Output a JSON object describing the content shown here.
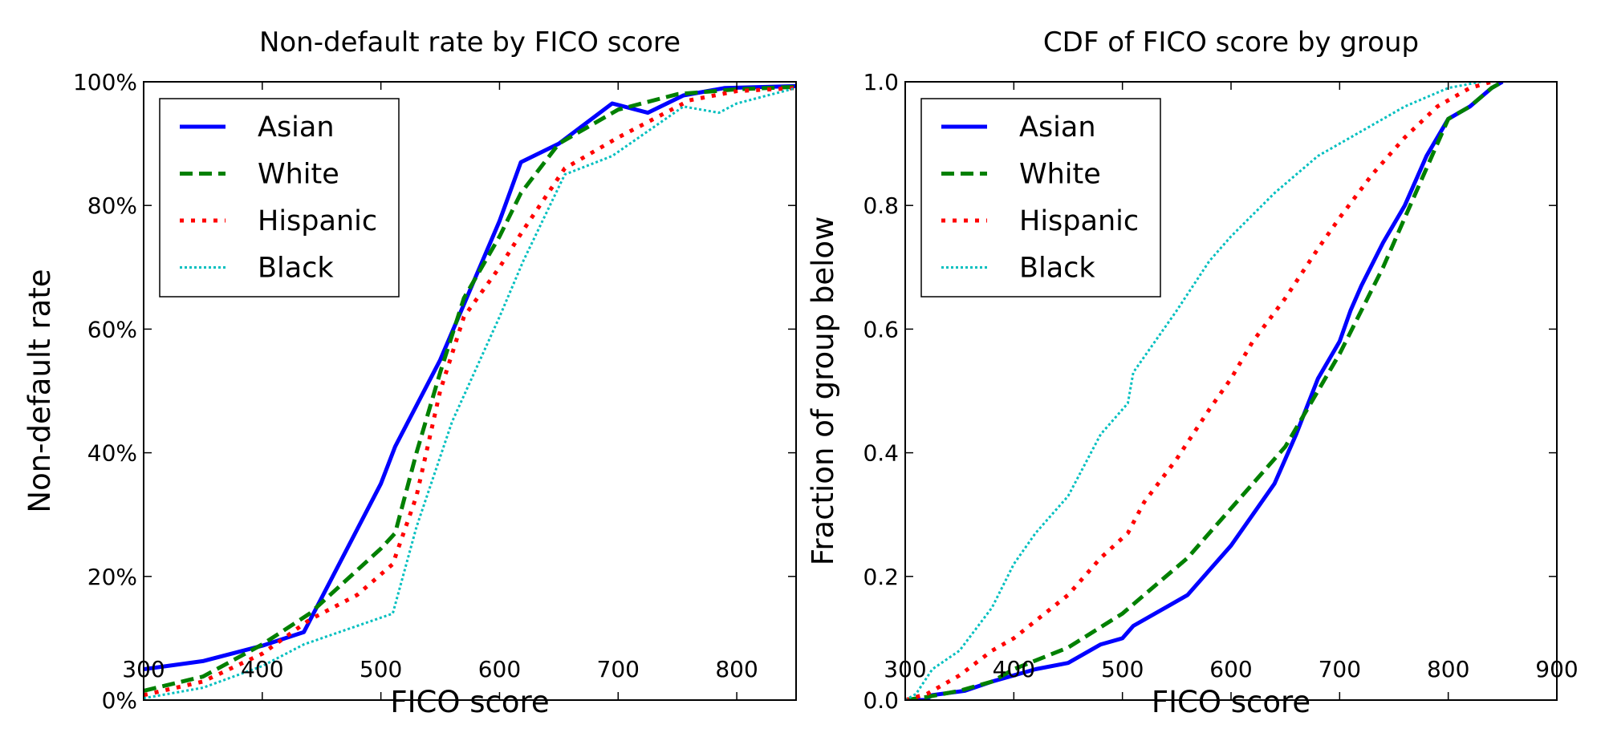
{
  "series_styles": {
    "Asian": {
      "color": "#0000ff",
      "dash": "solid"
    },
    "White": {
      "color": "#008000",
      "dash": "dashed"
    },
    "Hispanic": {
      "color": "#ff0000",
      "dash": "dashdot"
    },
    "Black": {
      "color": "#00bfbf",
      "dash": "dotted"
    }
  },
  "chart_data": [
    {
      "type": "line",
      "title": "Non-default rate by FICO score",
      "xlabel": "FICO score",
      "ylabel": "Non-default rate",
      "xlim": [
        300,
        850
      ],
      "ylim": [
        0,
        100
      ],
      "xticks": [
        300,
        400,
        500,
        600,
        700,
        800
      ],
      "yticks": [
        0,
        20,
        40,
        60,
        80,
        100
      ],
      "ytick_labels": [
        "0%",
        "20%",
        "40%",
        "60%",
        "80%",
        "100%"
      ],
      "grid": false,
      "legend": "top-left",
      "series": [
        {
          "name": "Asian",
          "points": [
            [
              300,
              5
            ],
            [
              350,
              6.3
            ],
            [
              400,
              8.8
            ],
            [
              435,
              11
            ],
            [
              500,
              35
            ],
            [
              512,
              41
            ],
            [
              550,
              55
            ],
            [
              600,
              77.5
            ],
            [
              618,
              87
            ],
            [
              650,
              90
            ],
            [
              695,
              96.5
            ],
            [
              725,
              95
            ],
            [
              755,
              97.8
            ],
            [
              790,
              99
            ],
            [
              850,
              99.3
            ]
          ]
        },
        {
          "name": "White",
          "points": [
            [
              300,
              1.5
            ],
            [
              350,
              3.8
            ],
            [
              400,
              9
            ],
            [
              440,
              14
            ],
            [
              500,
              24.5
            ],
            [
              512,
              27
            ],
            [
              530,
              40
            ],
            [
              550,
              53
            ],
            [
              570,
              65
            ],
            [
              600,
              75
            ],
            [
              618,
              82
            ],
            [
              650,
              90
            ],
            [
              700,
              95.5
            ],
            [
              750,
              98
            ],
            [
              800,
              98.8
            ],
            [
              850,
              99.2
            ]
          ]
        },
        {
          "name": "Hispanic",
          "points": [
            [
              300,
              0.8
            ],
            [
              350,
              3
            ],
            [
              400,
              7.5
            ],
            [
              440,
              13
            ],
            [
              480,
              17
            ],
            [
              510,
              22
            ],
            [
              530,
              33
            ],
            [
              550,
              50
            ],
            [
              570,
              62
            ],
            [
              600,
              70
            ],
            [
              620,
              76
            ],
            [
              655,
              86
            ],
            [
              700,
              91
            ],
            [
              730,
              94
            ],
            [
              760,
              97
            ],
            [
              800,
              98.5
            ],
            [
              850,
              99
            ]
          ]
        },
        {
          "name": "Black",
          "points": [
            [
              300,
              0.3
            ],
            [
              350,
              2
            ],
            [
              400,
              5.5
            ],
            [
              435,
              9
            ],
            [
              510,
              14
            ],
            [
              530,
              28
            ],
            [
              560,
              45
            ],
            [
              600,
              62
            ],
            [
              620,
              71
            ],
            [
              655,
              85
            ],
            [
              695,
              88
            ],
            [
              725,
              92
            ],
            [
              755,
              96
            ],
            [
              770,
              95.5
            ],
            [
              785,
              95
            ],
            [
              800,
              96.5
            ],
            [
              850,
              99
            ]
          ]
        }
      ]
    },
    {
      "type": "line",
      "title": "CDF of FICO score by group",
      "xlabel": "FICO score",
      "ylabel": "Fraction of group below",
      "xlim": [
        300,
        900
      ],
      "ylim": [
        0,
        1
      ],
      "xticks": [
        300,
        400,
        500,
        600,
        700,
        800,
        900
      ],
      "yticks": [
        0,
        0.2,
        0.4,
        0.6,
        0.8,
        1.0
      ],
      "ytick_labels": [
        "0.0",
        "0.2",
        "0.4",
        "0.6",
        "0.8",
        "1.0"
      ],
      "grid": false,
      "legend": "top-left",
      "series": [
        {
          "name": "Asian",
          "points": [
            [
              300,
              0
            ],
            [
              318,
              0
            ],
            [
              325,
              0.008
            ],
            [
              355,
              0.015
            ],
            [
              380,
              0.03
            ],
            [
              400,
              0.04
            ],
            [
              420,
              0.05
            ],
            [
              450,
              0.06
            ],
            [
              480,
              0.09
            ],
            [
              500,
              0.1
            ],
            [
              510,
              0.12
            ],
            [
              540,
              0.15
            ],
            [
              560,
              0.17
            ],
            [
              580,
              0.21
            ],
            [
              600,
              0.25
            ],
            [
              620,
              0.3
            ],
            [
              640,
              0.35
            ],
            [
              660,
              0.43
            ],
            [
              680,
              0.52
            ],
            [
              700,
              0.58
            ],
            [
              710,
              0.63
            ],
            [
              720,
              0.67
            ],
            [
              740,
              0.74
            ],
            [
              760,
              0.8
            ],
            [
              780,
              0.88
            ],
            [
              800,
              0.94
            ],
            [
              820,
              0.96
            ],
            [
              840,
              0.99
            ],
            [
              850,
              1
            ]
          ]
        },
        {
          "name": "White",
          "points": [
            [
              300,
              0
            ],
            [
              320,
              0.005
            ],
            [
              350,
              0.015
            ],
            [
              380,
              0.03
            ],
            [
              400,
              0.05
            ],
            [
              450,
              0.085
            ],
            [
              500,
              0.14
            ],
            [
              540,
              0.2
            ],
            [
              560,
              0.23
            ],
            [
              580,
              0.27
            ],
            [
              600,
              0.31
            ],
            [
              620,
              0.35
            ],
            [
              650,
              0.41
            ],
            [
              680,
              0.5
            ],
            [
              700,
              0.56
            ],
            [
              720,
              0.63
            ],
            [
              740,
              0.7
            ],
            [
              760,
              0.78
            ],
            [
              780,
              0.86
            ],
            [
              800,
              0.94
            ],
            [
              820,
              0.96
            ],
            [
              840,
              0.99
            ],
            [
              850,
              1
            ]
          ]
        },
        {
          "name": "Hispanic",
          "points": [
            [
              300,
              0
            ],
            [
              320,
              0.01
            ],
            [
              350,
              0.04
            ],
            [
              380,
              0.08
            ],
            [
              400,
              0.1
            ],
            [
              450,
              0.17
            ],
            [
              480,
              0.23
            ],
            [
              505,
              0.27
            ],
            [
              520,
              0.32
            ],
            [
              550,
              0.39
            ],
            [
              580,
              0.47
            ],
            [
              600,
              0.52
            ],
            [
              620,
              0.58
            ],
            [
              650,
              0.65
            ],
            [
              680,
              0.73
            ],
            [
              700,
              0.78
            ],
            [
              730,
              0.85
            ],
            [
              760,
              0.91
            ],
            [
              790,
              0.96
            ],
            [
              820,
              0.99
            ],
            [
              840,
              1
            ]
          ]
        },
        {
          "name": "Black",
          "points": [
            [
              300,
              0
            ],
            [
              310,
              0.01
            ],
            [
              325,
              0.05
            ],
            [
              350,
              0.08
            ],
            [
              380,
              0.15
            ],
            [
              400,
              0.22
            ],
            [
              420,
              0.27
            ],
            [
              450,
              0.33
            ],
            [
              480,
              0.43
            ],
            [
              505,
              0.48
            ],
            [
              510,
              0.53
            ],
            [
              550,
              0.63
            ],
            [
              580,
              0.71
            ],
            [
              600,
              0.75
            ],
            [
              640,
              0.82
            ],
            [
              680,
              0.88
            ],
            [
              720,
              0.92
            ],
            [
              760,
              0.96
            ],
            [
              800,
              0.99
            ],
            [
              830,
              1
            ]
          ]
        }
      ]
    }
  ]
}
